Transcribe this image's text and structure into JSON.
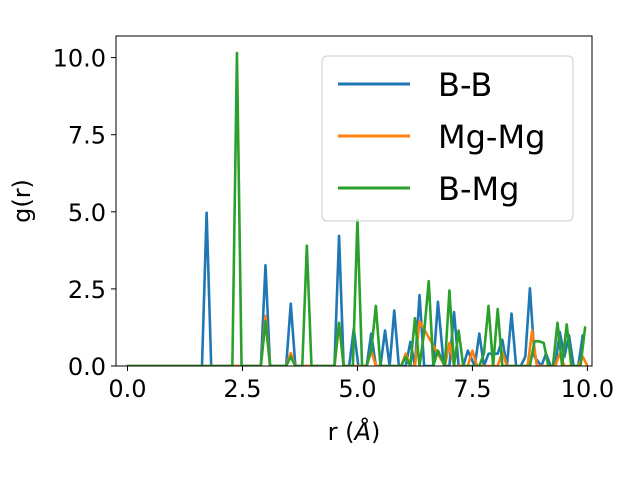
{
  "chart_data": {
    "type": "line",
    "title": "",
    "xlabel_prefix": "r (",
    "xlabel_symbol": "Å",
    "xlabel_suffix": ")",
    "ylabel": "g(r)",
    "xlim": [
      -0.25,
      10.1
    ],
    "ylim": [
      0,
      10.7
    ],
    "xticks": [
      0.0,
      2.5,
      5.0,
      7.5,
      10.0
    ],
    "xtick_labels": [
      "0.0",
      "2.5",
      "5.0",
      "7.5",
      "10.0"
    ],
    "yticks": [
      0.0,
      2.5,
      5.0,
      7.5,
      10.0
    ],
    "ytick_labels": [
      "0.0",
      "2.5",
      "5.0",
      "7.5",
      "10.0"
    ],
    "grid": false,
    "legend_position": "top-right",
    "series": [
      {
        "name": "B-B",
        "color": "#1f77b4",
        "x": [
          0.0,
          1.62,
          1.72,
          1.82,
          2.9,
          3.0,
          3.1,
          3.45,
          3.55,
          3.65,
          4.5,
          4.6,
          4.7,
          4.82,
          4.92,
          5.02,
          5.2,
          5.3,
          5.4,
          5.5,
          5.6,
          5.7,
          5.8,
          5.9,
          6.05,
          6.15,
          6.25,
          6.35,
          6.45,
          6.65,
          6.75,
          6.88,
          7.0,
          7.1,
          7.2,
          7.3,
          7.4,
          7.55,
          7.65,
          7.75,
          7.85,
          8.05,
          8.15,
          8.25,
          8.35,
          8.45,
          8.55,
          8.65,
          8.75,
          8.85,
          9.0,
          9.1,
          9.2,
          9.3,
          9.4,
          9.5,
          9.6,
          9.7,
          9.8,
          9.9
        ],
        "y": [
          0.0,
          0.0,
          4.97,
          0.0,
          0.0,
          3.27,
          0.0,
          0.0,
          2.02,
          0.0,
          0.0,
          4.22,
          0.0,
          0.0,
          1.2,
          0.0,
          0.0,
          1.05,
          0.0,
          0.0,
          1.15,
          0.0,
          1.8,
          0.0,
          0.0,
          0.78,
          0.0,
          2.3,
          0.0,
          0.0,
          2.08,
          0.0,
          0.0,
          1.75,
          0.0,
          0.0,
          0.5,
          0.0,
          1.05,
          0.0,
          0.4,
          0.4,
          0.85,
          0.0,
          1.7,
          0.0,
          0.0,
          0.3,
          2.52,
          0.3,
          0.0,
          0.4,
          0.0,
          0.0,
          1.1,
          0.3,
          1.0,
          0.0,
          0.0,
          1.0
        ]
      },
      {
        "name": "Mg-Mg",
        "color": "#ff7f0e",
        "x": [
          0.0,
          2.9,
          3.0,
          3.1,
          3.45,
          3.55,
          3.65,
          4.5,
          4.6,
          4.7,
          5.2,
          5.3,
          5.4,
          5.95,
          6.05,
          6.15,
          6.25,
          6.35,
          6.9,
          7.0,
          7.1,
          7.4,
          7.5,
          7.6,
          8.05,
          8.15,
          8.25,
          8.7,
          8.8,
          8.9,
          9.3,
          9.4,
          9.5,
          9.8,
          9.9,
          10.0
        ],
        "y": [
          0.0,
          0.0,
          1.62,
          0.0,
          0.0,
          0.42,
          0.0,
          0.0,
          1.38,
          0.0,
          0.0,
          0.5,
          0.0,
          0.0,
          0.4,
          0.0,
          0.0,
          1.45,
          0.0,
          0.75,
          0.0,
          0.0,
          0.5,
          0.0,
          0.0,
          0.45,
          0.0,
          0.0,
          1.15,
          0.0,
          0.0,
          0.4,
          0.0,
          0.0,
          0.3,
          0.0
        ]
      },
      {
        "name": "B-Mg",
        "color": "#2ca02c",
        "x": [
          0.0,
          2.28,
          2.38,
          2.48,
          2.9,
          3.0,
          3.1,
          3.45,
          3.55,
          3.65,
          3.8,
          3.9,
          4.0,
          4.5,
          4.6,
          4.7,
          4.9,
          5.0,
          5.1,
          5.2,
          5.3,
          5.4,
          5.5,
          5.6,
          5.7,
          5.95,
          6.05,
          6.15,
          6.25,
          6.35,
          6.45,
          6.55,
          6.65,
          6.75,
          6.9,
          7.0,
          7.1,
          7.2,
          7.3,
          7.4,
          7.55,
          7.65,
          7.75,
          7.85,
          7.95,
          8.05,
          8.15,
          8.25,
          8.35,
          8.45,
          8.55,
          8.65,
          8.75,
          8.85,
          8.95,
          9.05,
          9.15,
          9.25,
          9.35,
          9.45,
          9.55,
          9.65,
          9.75,
          9.85,
          9.95
        ],
        "y": [
          0.0,
          0.0,
          10.15,
          0.0,
          0.0,
          1.45,
          0.0,
          0.0,
          0.3,
          0.0,
          0.0,
          3.9,
          0.0,
          0.0,
          1.4,
          0.0,
          0.0,
          4.75,
          0.0,
          0.0,
          0.5,
          1.95,
          0.0,
          0.0,
          0.0,
          0.0,
          0.3,
          0.0,
          1.55,
          0.0,
          1.1,
          2.75,
          0.0,
          0.5,
          0.0,
          2.45,
          0.0,
          1.15,
          0.0,
          0.0,
          0.0,
          0.0,
          0.4,
          1.95,
          0.0,
          1.85,
          0.0,
          0.0,
          0.0,
          0.0,
          0.0,
          0.0,
          0.0,
          0.8,
          0.8,
          0.75,
          0.0,
          0.0,
          1.4,
          0.0,
          1.35,
          0.0,
          0.0,
          0.0,
          1.25
        ]
      }
    ]
  }
}
